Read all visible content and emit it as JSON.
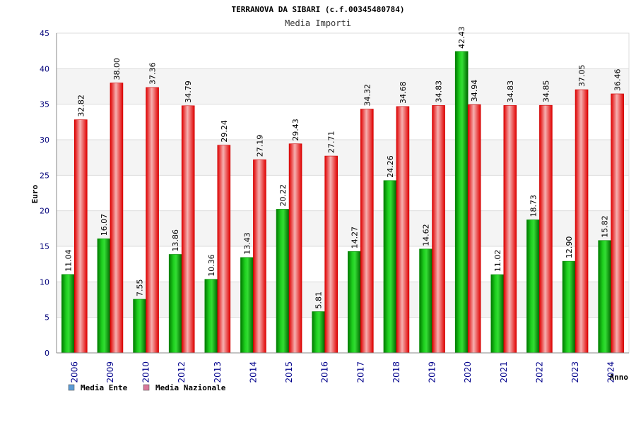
{
  "chart_data": {
    "type": "bar",
    "title": "TERRANOVA DA SIBARI (c.f.00345480784)",
    "subtitle": "Media Importi",
    "ylabel": "Euro",
    "xlabel": "Anno",
    "ylim": [
      0,
      45
    ],
    "yticks": [
      0,
      5,
      10,
      15,
      20,
      25,
      30,
      35,
      40,
      45
    ],
    "grid": true,
    "legend_position": "bottom-left",
    "categories": [
      "2006",
      "2009",
      "2010",
      "2012",
      "2013",
      "2014",
      "2015",
      "2016",
      "2017",
      "2018",
      "2019",
      "2020",
      "2021",
      "2022",
      "2023",
      "2024"
    ],
    "series": [
      {
        "name": "Media Ente",
        "color": "#00aa00",
        "legend_color": "#5b9bd5",
        "values": [
          11.04,
          16.07,
          7.55,
          13.86,
          10.36,
          13.43,
          20.22,
          5.81,
          14.27,
          24.26,
          14.62,
          42.43,
          11.02,
          18.73,
          12.9,
          15.82
        ],
        "labels": [
          "11.04",
          "16.07",
          "7.55",
          "13.86",
          "10.36",
          "13.43",
          "20.22",
          "5.81",
          "14.27",
          "24.26",
          "14.62",
          "42.43",
          "11.02",
          "18.73",
          "12.90",
          "15.82"
        ]
      },
      {
        "name": "Media Nazionale",
        "color": "#ee1111",
        "legend_color": "#d9779a",
        "values": [
          32.82,
          38.0,
          37.36,
          34.79,
          29.24,
          27.19,
          29.43,
          27.71,
          34.32,
          34.68,
          34.83,
          34.94,
          34.83,
          34.85,
          37.05,
          36.46
        ],
        "labels": [
          "32.82",
          "38.00",
          "37.36",
          "34.79",
          "29.24",
          "27.19",
          "29.43",
          "27.71",
          "34.32",
          "34.68",
          "34.83",
          "34.94",
          "34.83",
          "34.85",
          "37.05",
          "36.46"
        ]
      }
    ]
  }
}
